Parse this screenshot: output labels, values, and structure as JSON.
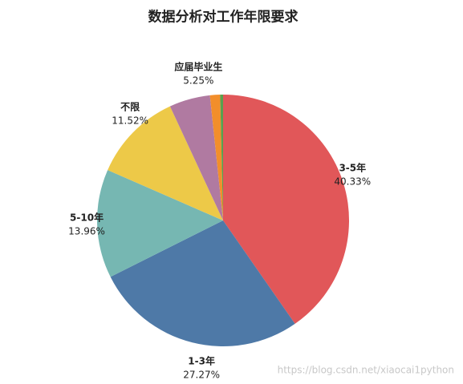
{
  "chart_data": {
    "type": "pie",
    "title": "数据分析对工作年限要求",
    "categories": [
      "3-5年",
      "1-3年",
      "5-10年",
      "不限",
      "应届毕业生",
      null,
      null
    ],
    "values": [
      40.33,
      27.27,
      13.96,
      11.52,
      5.25,
      1.3,
      0.37
    ],
    "value_labels": [
      "40.33%",
      "27.27%",
      "13.96%",
      "11.52%",
      "5.25%",
      null,
      null
    ],
    "colors": [
      "#e15759",
      "#4e79a7",
      "#76b7b2",
      "#edc948",
      "#b07aa1",
      "#f28e2b",
      "#59a14f"
    ],
    "watermark": "https://blog.csdn.net/xiaocai1python"
  }
}
